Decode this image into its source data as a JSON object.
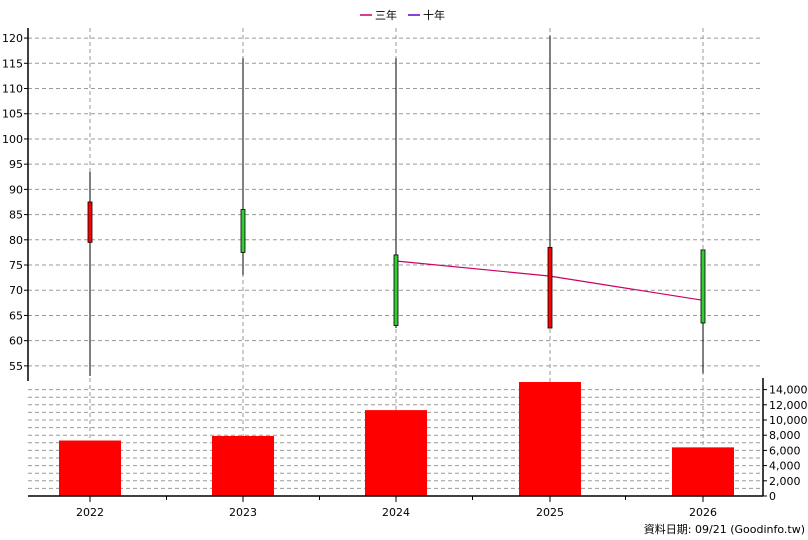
{
  "legend": [
    {
      "label": "三年",
      "color": "#cc0066"
    },
    {
      "label": "十年",
      "color": "#6600cc"
    }
  ],
  "source_note": "資料日期: 09/21  (Goodinfo.tw)",
  "colors": {
    "up": "#ff0000",
    "down": "#33cc33",
    "wick": "#000000",
    "volume": "#ff0000",
    "three_year_line": "#cc0066",
    "ten_year_line": "#6600cc"
  },
  "chart_data": [
    {
      "type": "candlestick",
      "categories": [
        "2022",
        "2023",
        "2024",
        "2025",
        "2026"
      ],
      "series": [
        {
          "open": 79.5,
          "close": 87.5,
          "high": 93.5,
          "low": 53.0,
          "direction": "up"
        },
        {
          "open": 86.0,
          "close": 77.5,
          "high": 116.0,
          "low": 73.0,
          "direction": "down"
        },
        {
          "open": 77.0,
          "close": 63.0,
          "high": 116.0,
          "low": 62.5,
          "direction": "down"
        },
        {
          "open": 62.5,
          "close": 78.5,
          "high": 120.5,
          "low": 62.5,
          "direction": "up"
        },
        {
          "open": 78.0,
          "close": 63.5,
          "high": 78.0,
          "low": 53.5,
          "direction": "down"
        }
      ],
      "lines": [
        {
          "name": "三年",
          "x": [
            "2024",
            "2025",
            "2026"
          ],
          "values": [
            75.8,
            72.8,
            68.0
          ]
        }
      ],
      "ylim": [
        52,
        122
      ],
      "yticks": [
        55,
        60,
        65,
        70,
        75,
        80,
        85,
        90,
        95,
        100,
        105,
        110,
        115,
        120
      ],
      "grid": true,
      "legend_position": "top-center"
    },
    {
      "type": "bar",
      "categories": [
        "2022",
        "2023",
        "2024",
        "2025",
        "2026"
      ],
      "values": [
        7300,
        7900,
        11300,
        15000,
        6400
      ],
      "ylim": [
        0,
        15000
      ],
      "yticks": [
        "0",
        "2,000",
        "4,000",
        "6,000",
        "8,000",
        "10,000",
        "12,000",
        "14,000"
      ],
      "grid": true
    }
  ]
}
